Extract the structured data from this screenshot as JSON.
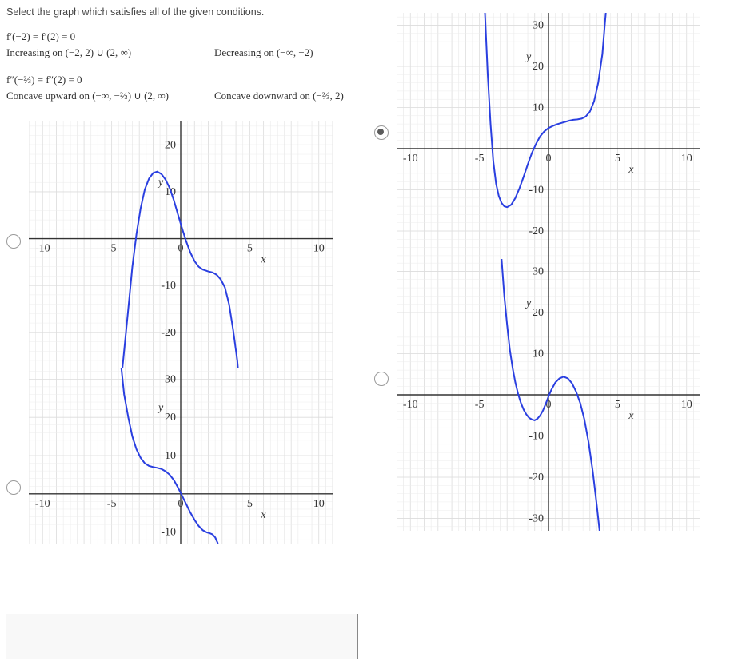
{
  "instructions": "Select the graph which satisfies all of the given conditions.",
  "conditions": {
    "line1": "f′(−2) = f′(2) = 0",
    "line2_left": "Increasing on (−2, 2) ∪ (2, ∞)",
    "line2_right": "Decreasing on (−∞, −2)",
    "line3": "f″(−⅔) = f″(2) = 0",
    "line4_left": "Concave upward on (−∞, −⅔) ∪ (2, ∞)",
    "line4_right": "Concave downward on (−⅔, 2)"
  },
  "axis": {
    "xmin": -11,
    "xmax": 11,
    "xticks": [
      -10,
      -5,
      0,
      5,
      10
    ],
    "xlabel": "x",
    "ylabel": "y",
    "tick_color": "#333",
    "grid_color_major": "#dcdcdc",
    "grid_color_minor": "#ececec",
    "axis_color": "#333",
    "label_font": "italic 13px Times New Roman",
    "tick_font": "13px Times New Roman"
  },
  "options": [
    {
      "id": "A",
      "selected": false,
      "ymin": -33,
      "ymax": 25,
      "yticks": [
        -30,
        -20,
        -10,
        0,
        10,
        20
      ],
      "curve_color": "#2a3fe0",
      "curve_width": 2,
      "points": [
        [
          -4.4,
          -33
        ],
        [
          -4.1,
          -24
        ],
        [
          -3.8,
          -15
        ],
        [
          -3.5,
          -6
        ],
        [
          -3.2,
          1
        ],
        [
          -2.9,
          6.5
        ],
        [
          -2.6,
          10.5
        ],
        [
          -2.3,
          12.8
        ],
        [
          -2,
          14
        ],
        [
          -1.7,
          14.3
        ],
        [
          -1.4,
          13.8
        ],
        [
          -1.1,
          12.6
        ],
        [
          -0.8,
          10.8
        ],
        [
          -0.5,
          8.2
        ],
        [
          -0.2,
          5.2
        ],
        [
          0.1,
          2.2
        ],
        [
          0.4,
          -0.6
        ],
        [
          0.7,
          -3.0
        ],
        [
          1.0,
          -4.8
        ],
        [
          1.3,
          -6.0
        ],
        [
          1.6,
          -6.6
        ],
        [
          2.0,
          -7.0
        ],
        [
          2.3,
          -7.2
        ],
        [
          2.6,
          -7.7
        ],
        [
          2.9,
          -8.7
        ],
        [
          3.2,
          -10.4
        ],
        [
          3.5,
          -14.0
        ],
        [
          3.8,
          -19.5
        ],
        [
          4.1,
          -26.0
        ],
        [
          4.3,
          -33
        ]
      ]
    },
    {
      "id": "B",
      "selected": false,
      "ymin": -13,
      "ymax": 33,
      "yticks": [
        -10,
        0,
        10,
        20,
        30
      ],
      "curve_color": "#2a3fe0",
      "curve_width": 2,
      "points": [
        [
          -4.3,
          33
        ],
        [
          -4.1,
          26
        ],
        [
          -3.8,
          20
        ],
        [
          -3.5,
          15
        ],
        [
          -3.2,
          11.6
        ],
        [
          -2.9,
          9.4
        ],
        [
          -2.6,
          8.0
        ],
        [
          -2.3,
          7.3
        ],
        [
          -2.0,
          7.0
        ],
        [
          -1.7,
          6.8
        ],
        [
          -1.4,
          6.5
        ],
        [
          -1.1,
          5.9
        ],
        [
          -0.8,
          5.0
        ],
        [
          -0.5,
          3.6
        ],
        [
          -0.2,
          1.7
        ],
        [
          0.1,
          -0.5
        ],
        [
          0.4,
          -2.7
        ],
        [
          0.7,
          -4.9
        ],
        [
          1.0,
          -6.8
        ],
        [
          1.3,
          -8.4
        ],
        [
          1.6,
          -9.5
        ],
        [
          1.9,
          -10.1
        ],
        [
          2.1,
          -10.3
        ],
        [
          2.3,
          -10.6
        ],
        [
          2.5,
          -11.4
        ],
        [
          2.6,
          -12.2
        ],
        [
          2.7,
          -13
        ]
      ]
    },
    {
      "id": "C",
      "selected": true,
      "ymin": -33,
      "ymax": 33,
      "yticks": [
        -30,
        -20,
        -10,
        0,
        10,
        20,
        30
      ],
      "curve_color": "#2a3fe0",
      "curve_width": 2,
      "points": [
        [
          -4.6,
          33
        ],
        [
          -4.4,
          18
        ],
        [
          -4.2,
          6
        ],
        [
          -4.0,
          -3
        ],
        [
          -3.8,
          -8.5
        ],
        [
          -3.6,
          -11.5
        ],
        [
          -3.4,
          -13.2
        ],
        [
          -3.2,
          -14.0
        ],
        [
          -3.0,
          -14.2
        ],
        [
          -2.7,
          -13.6
        ],
        [
          -2.4,
          -12.0
        ],
        [
          -2.1,
          -9.6
        ],
        [
          -1.8,
          -6.8
        ],
        [
          -1.5,
          -3.8
        ],
        [
          -1.2,
          -1.0
        ],
        [
          -0.9,
          1.2
        ],
        [
          -0.6,
          3.0
        ],
        [
          -0.3,
          4.2
        ],
        [
          0.0,
          5.0
        ],
        [
          0.3,
          5.5
        ],
        [
          0.6,
          5.9
        ],
        [
          0.9,
          6.2
        ],
        [
          1.2,
          6.5
        ],
        [
          1.5,
          6.8
        ],
        [
          1.8,
          7.0
        ],
        [
          2.1,
          7.1
        ],
        [
          2.4,
          7.3
        ],
        [
          2.7,
          7.8
        ],
        [
          3.0,
          9.0
        ],
        [
          3.3,
          11.5
        ],
        [
          3.6,
          16.0
        ],
        [
          3.9,
          23.0
        ],
        [
          4.1,
          31.0
        ],
        [
          4.15,
          33
        ]
      ]
    },
    {
      "id": "D",
      "selected": false,
      "ymin": -33,
      "ymax": 33,
      "yticks": [
        -30,
        -20,
        -10,
        0,
        10,
        20,
        30
      ],
      "curve_color": "#2a3fe0",
      "curve_width": 2,
      "points": [
        [
          -3.4,
          33
        ],
        [
          -3.2,
          24
        ],
        [
          -3.0,
          17
        ],
        [
          -2.8,
          11
        ],
        [
          -2.6,
          6.5
        ],
        [
          -2.4,
          3.0
        ],
        [
          -2.2,
          0.2
        ],
        [
          -2.0,
          -2.0
        ],
        [
          -1.8,
          -3.6
        ],
        [
          -1.6,
          -4.8
        ],
        [
          -1.4,
          -5.6
        ],
        [
          -1.2,
          -6.0
        ],
        [
          -1.0,
          -6.2
        ],
        [
          -0.8,
          -5.8
        ],
        [
          -0.6,
          -5.0
        ],
        [
          -0.4,
          -3.8
        ],
        [
          -0.2,
          -2.2
        ],
        [
          0.0,
          -0.4
        ],
        [
          0.2,
          1.2
        ],
        [
          0.5,
          3.0
        ],
        [
          0.8,
          4.0
        ],
        [
          1.1,
          4.4
        ],
        [
          1.4,
          4.0
        ],
        [
          1.7,
          2.8
        ],
        [
          2.0,
          0.8
        ],
        [
          2.3,
          -2.0
        ],
        [
          2.6,
          -6.0
        ],
        [
          2.9,
          -11.5
        ],
        [
          3.2,
          -18.5
        ],
        [
          3.5,
          -27.0
        ],
        [
          3.7,
          -33
        ]
      ]
    }
  ]
}
